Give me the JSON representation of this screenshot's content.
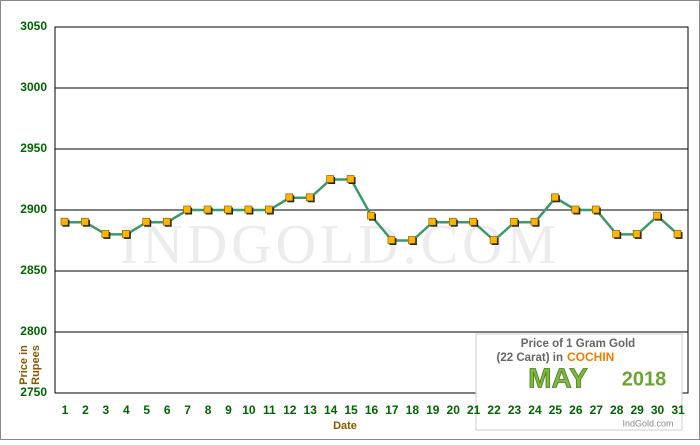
{
  "chart_data": {
    "type": "line",
    "x_label": "Date",
    "y_label": [
      "Price in",
      "Rupees"
    ],
    "watermark": "INDGOLD.COM",
    "info_box": {
      "line1": "Price of 1 Gram Gold",
      "line2": "(22 Carat) in",
      "city": "COCHIN",
      "month": "MAY",
      "year": "2018",
      "site": "IndGold.com"
    },
    "categories": [
      "1",
      "2",
      "3",
      "4",
      "5",
      "6",
      "7",
      "8",
      "9",
      "10",
      "11",
      "12",
      "13",
      "14",
      "15",
      "16",
      "17",
      "18",
      "19",
      "20",
      "21",
      "22",
      "23",
      "24",
      "25",
      "26",
      "27",
      "28",
      "29",
      "30",
      "31"
    ],
    "values": [
      2890,
      2890,
      2880,
      2880,
      2890,
      2890,
      2900,
      2900,
      2900,
      2900,
      2900,
      2910,
      2910,
      2925,
      2925,
      2895,
      2875,
      2875,
      2890,
      2890,
      2890,
      2875,
      2890,
      2890,
      2910,
      2900,
      2900,
      2880,
      2880,
      2895,
      2880
    ],
    "color": "#3c9a68",
    "marker_color": "#ffb400",
    "ylim": [
      2750,
      3050
    ],
    "yticks": [
      2750,
      2800,
      2850,
      2900,
      2950,
      3000,
      3050
    ],
    "grid": true
  }
}
